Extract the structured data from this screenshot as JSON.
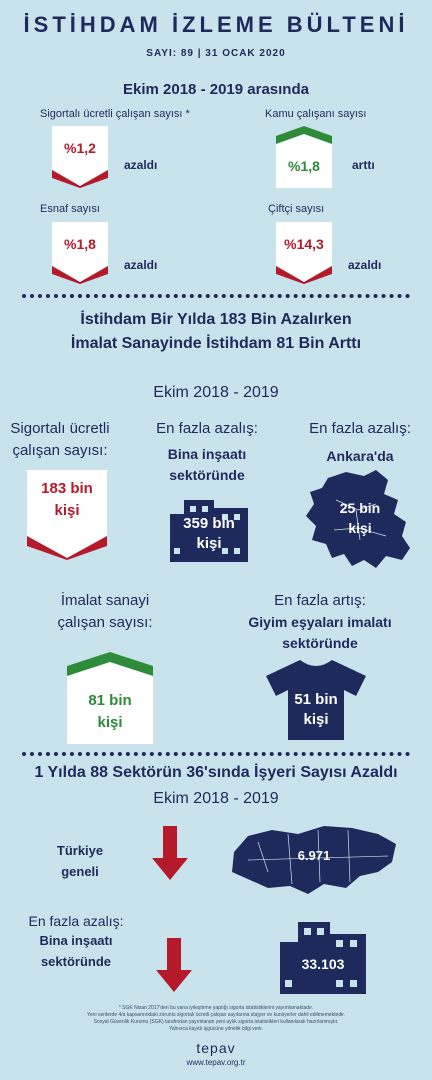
{
  "header": {
    "title": "İSTİHDAM İZLEME BÜLTENİ",
    "subtitle": "SAYI: 89 | 31 OCAK 2020"
  },
  "section1": {
    "period": "Ekim 2018 - 2019 arasında",
    "items": [
      {
        "label": "Sigortalı ücretli çalışan sayısı *",
        "value": "%1,2",
        "state": "azaldı",
        "trend": "down",
        "color": "#b51a2b"
      },
      {
        "label": "Kamu çalışanı sayısı",
        "value": "%1,8",
        "state": "arttı",
        "trend": "up",
        "color": "#2e8b3a"
      },
      {
        "label": "Esnaf sayısı",
        "value": "%1,8",
        "state": "azaldı",
        "trend": "down",
        "color": "#b51a2b"
      },
      {
        "label": "Çiftçi sayısı",
        "value": "%14,3",
        "state": "azaldı",
        "trend": "down",
        "color": "#b51a2b"
      }
    ]
  },
  "section2": {
    "headline_line1": "İstihdam Bir Yılda 183 Bin Azalırken",
    "headline_line2": "İmalat Sanayinde İstihdam 81 Bin Arttı",
    "period": "Ekim 2018 - 2019",
    "col1_label_line1": "Sigortalı ücretli",
    "col1_label_line2": "çalışan sayısı:",
    "col1_value_line1": "183 bin",
    "col1_value_line2": "kişi",
    "col2_title": "En fazla azalış:",
    "col2_sub_line1": "Bina inşaatı",
    "col2_sub_line2": "sektöründe",
    "col2_value_line1": "359 bin",
    "col2_value_line2": "kişi",
    "col3_title": "En fazla azalış:",
    "col3_sub": "Ankara'da",
    "col3_value_line1": "25 bin",
    "col3_value_line2": "kişi",
    "row2_left_label_line1": "İmalat sanayi",
    "row2_left_label_line2": "çalışan sayısı:",
    "row2_left_value_line1": "81 bin",
    "row2_left_value_line2": "kişi",
    "row2_right_title": "En fazla artış:",
    "row2_right_sub_line1": "Giyim eşyaları imalatı",
    "row2_right_sub_line2": "sektöründe",
    "row2_right_value_line1": "51 bin",
    "row2_right_value_line2": "kişi"
  },
  "section3": {
    "headline": "1 Yılda 88 Sektörün 36'sında İşyeri Sayısı Azaldı",
    "period": "Ekim 2018 - 2019",
    "row1_label_line1": "Türkiye",
    "row1_label_line2": "geneli",
    "row1_value": "6.971",
    "row2_title": "En fazla azalış:",
    "row2_sub_line1": "Bina inşaatı",
    "row2_sub_line2": "sektöründe",
    "row2_value": "33.103"
  },
  "footer": {
    "note1": "* SGK Nisan 2017'den bu yana iyileştirme yaptığı sigorta istatistiklerini yayımlamaktadır.",
    "note2": "Yeni serilerde 4/a kapsamındaki zorunlu sigortalı ücretli çalışan sayılarına stajyer ve kursiyerler dahil edilmemektedir.",
    "note3": "Sosyal Güvenlik Kurumu (SGK) tarafından yayımlanan yeni aylık sigorta istatistikleri kullanılarak hazırlanmıştır.",
    "note4": "Yalnızca kayıtlı işgücüne yönelik bilgi verir.",
    "brand": "tepav",
    "url": "www.tepav.org.tr"
  },
  "colors": {
    "navy": "#1e2a5c",
    "red": "#b51a2b",
    "green": "#2e8b3a",
    "background": "#c9e3ec"
  }
}
